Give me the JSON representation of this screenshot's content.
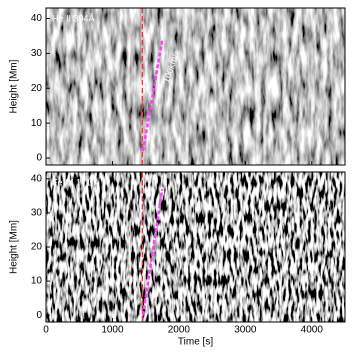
{
  "chart_data": [
    {
      "type": "image",
      "label": "He II 304Å",
      "annotation": "100km/s",
      "ylabel": "Height [Mm]",
      "ylim": [
        -2,
        43
      ],
      "yticks": [
        0,
        10,
        20,
        30,
        40
      ],
      "xlim": [
        0,
        4500
      ],
      "xticks": [
        0,
        1000,
        2000,
        3000,
        4000
      ],
      "vline": {
        "x": 1450,
        "color": "#ff3030"
      },
      "fit": {
        "x": [
          1460,
          1750
        ],
        "y": [
          2,
          34
        ],
        "color": "#ff40ff"
      }
    },
    {
      "type": "image",
      "label": "Fe IX 171 Å",
      "ylabel": "Height [Mm]",
      "xlabel": "Time [s]",
      "ylim": [
        -2,
        42
      ],
      "yticks": [
        0,
        10,
        20,
        30,
        40
      ],
      "xlim": [
        0,
        4500
      ],
      "xticks": [
        0,
        1000,
        2000,
        3000,
        4000
      ],
      "vline": {
        "x": 1450,
        "color": "#ff3030"
      },
      "fit": {
        "x": [
          1460,
          1750
        ],
        "y": [
          0,
          37
        ],
        "color": "#ff40ff"
      }
    }
  ]
}
